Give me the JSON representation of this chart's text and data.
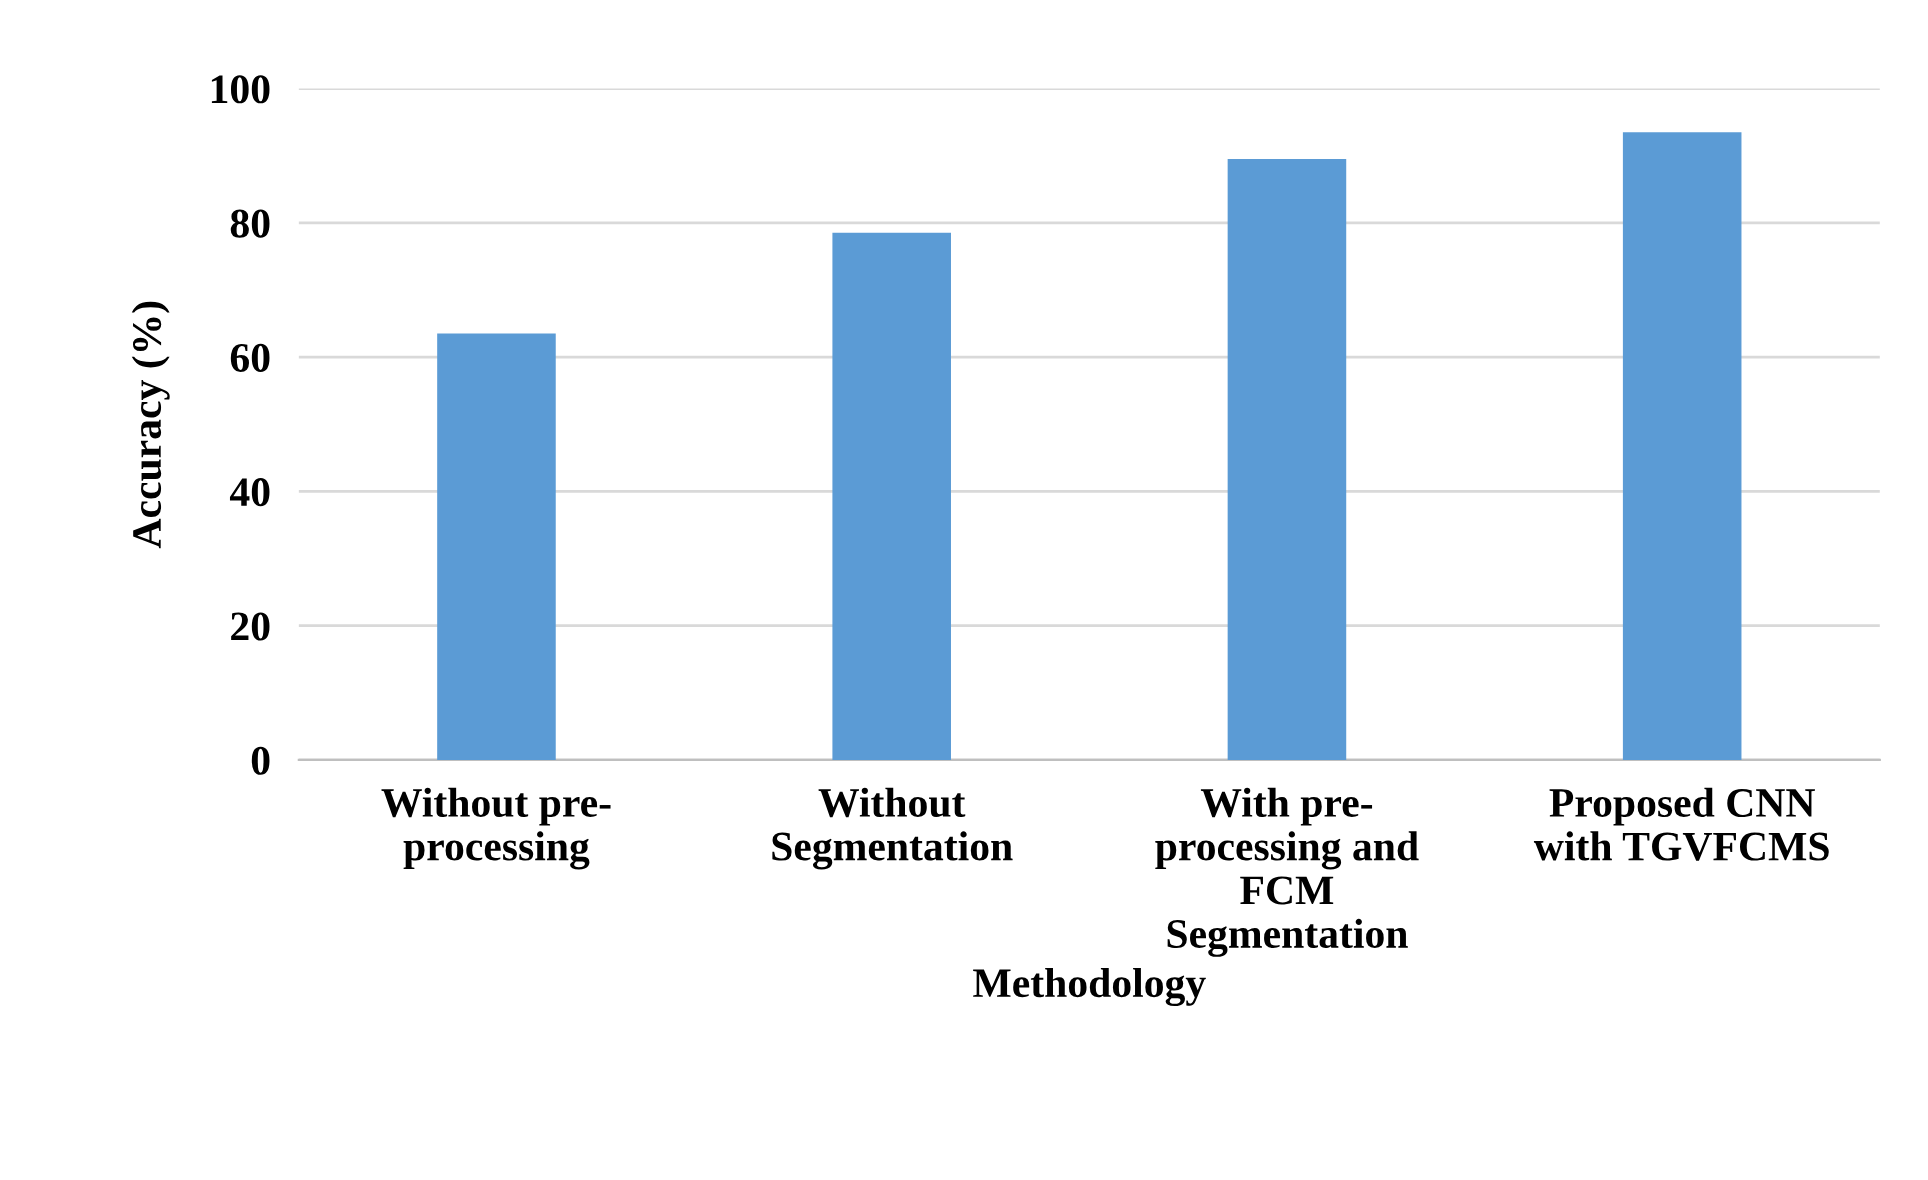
{
  "chart_data": {
    "type": "bar",
    "xlabel": "Methodology",
    "ylabel": "Accuracy (%)",
    "categories": [
      "Without pre-\nprocessing",
      "Without\nSegmentation",
      "With pre-\nprocessing and\nFCM\nSegmentation",
      "Proposed CNN\nwith TGVFCMS"
    ],
    "values": [
      63.5,
      78.5,
      89.5,
      93.5
    ],
    "color": "#5b9bd5",
    "ylim": [
      0,
      100
    ],
    "yticks": [
      0,
      20,
      40,
      60,
      80,
      100
    ],
    "grid": "y"
  }
}
